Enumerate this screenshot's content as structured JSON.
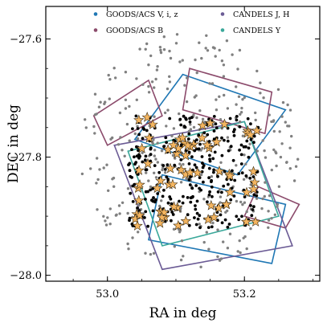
{
  "chart_data": {
    "type": "scatter",
    "xlabel": "RA in deg",
    "ylabel": "DEC in deg",
    "xlim": [
      52.91,
      53.31
    ],
    "ylim": [
      -28.01,
      -27.545
    ],
    "x_ticks": [
      53.0,
      53.2
    ],
    "x_tick_labels": [
      "53.0",
      "53.2"
    ],
    "y_ticks": [
      -27.6,
      -27.8,
      -28.0
    ],
    "y_tick_labels": [
      "−27.6",
      "−27.8",
      "−28.0"
    ],
    "grid": false,
    "legend_position": "top",
    "legend": [
      {
        "label": "GOODS/ACS V, i, z",
        "color": "#1f77b4"
      },
      {
        "label": "GOODS/ACS B",
        "color": "#8b4a6b"
      },
      {
        "label": "CANDELS J, H",
        "color": "#6b5b95"
      },
      {
        "label": "CANDELS Y",
        "color": "#3aa89a"
      }
    ],
    "series": [
      {
        "marker": "dot",
        "color": "#808080",
        "field": {
          "center": [
            53.12,
            -27.79
          ],
          "radius": [
            0.16,
            0.2
          ],
          "count": 340
        }
      },
      {
        "marker": "dot",
        "color": "#000000",
        "field": {
          "ra_range": [
            53.03,
            53.22
          ],
          "dec_range": [
            -27.92,
            -27.73
          ],
          "count": 300
        }
      },
      {
        "marker": "star",
        "color": "#f4b560",
        "field": {
          "ra_range": [
            53.03,
            53.22
          ],
          "dec_range": [
            -27.92,
            -27.73
          ],
          "count": 70
        }
      }
    ],
    "footprints": [
      {
        "name": "GOODS/ACS V, i, z",
        "color": "#1f77b4",
        "corners": [
          [
            53.11,
            -27.66
          ],
          [
            53.26,
            -27.72
          ],
          [
            53.19,
            -27.83
          ],
          [
            53.04,
            -27.77
          ]
        ]
      },
      {
        "name": "GOODS/ACS V, i, z",
        "color": "#1f77b4",
        "corners": [
          [
            53.08,
            -27.83
          ],
          [
            53.26,
            -27.88
          ],
          [
            53.24,
            -27.98
          ],
          [
            53.06,
            -27.94
          ]
        ]
      },
      {
        "name": "GOODS/ACS B",
        "color": "#8b4a6b",
        "corners": [
          [
            52.98,
            -27.73
          ],
          [
            53.06,
            -27.67
          ],
          [
            53.08,
            -27.73
          ],
          [
            53.0,
            -27.78
          ]
        ]
      },
      {
        "name": "GOODS/ACS B",
        "color": "#8b4a6b",
        "corners": [
          [
            53.12,
            -27.65
          ],
          [
            53.24,
            -27.69
          ],
          [
            53.23,
            -27.76
          ],
          [
            53.11,
            -27.72
          ]
        ]
      },
      {
        "name": "GOODS/ACS B",
        "color": "#8b4a6b",
        "corners": [
          [
            53.22,
            -27.85
          ],
          [
            53.28,
            -27.88
          ],
          [
            53.26,
            -27.92
          ],
          [
            53.2,
            -27.9
          ]
        ]
      },
      {
        "name": "CANDELS J, H",
        "color": "#6b5b95",
        "corners": [
          [
            53.01,
            -27.78
          ],
          [
            53.2,
            -27.74
          ],
          [
            53.27,
            -27.95
          ],
          [
            53.08,
            -27.99
          ]
        ]
      },
      {
        "name": "CANDELS Y",
        "color": "#3aa89a",
        "corners": [
          [
            53.03,
            -27.79
          ],
          [
            53.2,
            -27.74
          ],
          [
            53.25,
            -27.9
          ],
          [
            53.08,
            -27.95
          ]
        ]
      }
    ]
  }
}
